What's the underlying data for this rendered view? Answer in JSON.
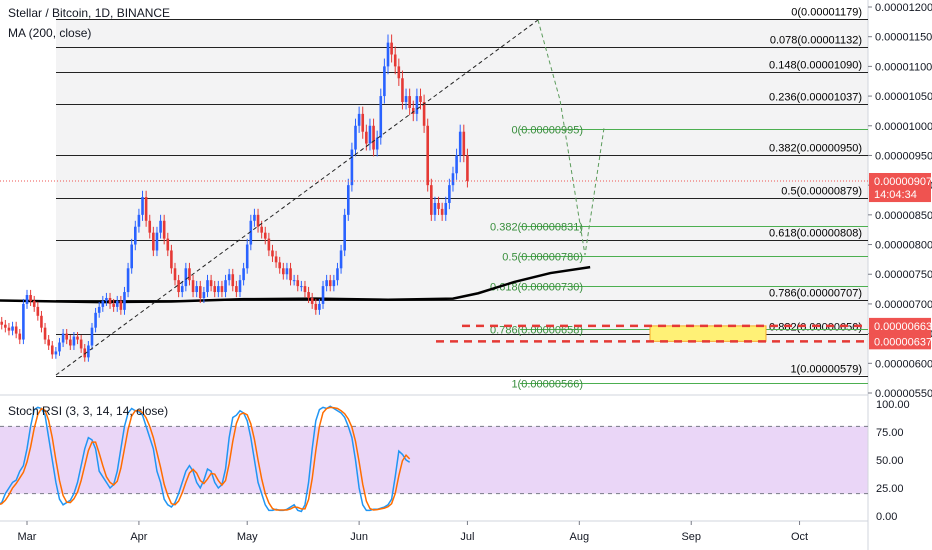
{
  "chart_data": {
    "type": "candlestick",
    "title": "Stellar / Bitcoin, 1D, BINANCE",
    "ma_label": "MA (200, close)",
    "rsi_label": "Stoch RSI (3, 3, 14, 14, close)",
    "price_axis": {
      "ticks": [
        "0.00001200",
        "0.00001150",
        "0.00001100",
        "0.00001050",
        "0.00001000",
        "0.00000950",
        "0.00000900",
        "0.00000850",
        "0.00000800",
        "0.00000750",
        "0.00000700",
        "0.00000650",
        "0.00000600",
        "0.00000550"
      ],
      "range": [
        5.5e-06,
        1.21e-05
      ]
    },
    "rsi_axis": {
      "ticks": [
        "100.00",
        "75.00",
        "50.00",
        "25.00",
        "0.00"
      ],
      "range": [
        0,
        100
      ],
      "band": [
        20,
        80
      ]
    },
    "x_ticks": [
      "Mar",
      "Apr",
      "May",
      "Jun",
      "Jul",
      "Aug",
      "Sep",
      "Oct"
    ],
    "x_tick_days": [
      0,
      31,
      61,
      92,
      122,
      153,
      184,
      214
    ],
    "price_labels": [
      {
        "text": "0.00000907",
        "value": 9.07e-06,
        "color": "#ef5350"
      },
      {
        "text": "14:04:34",
        "value": 8.85e-06,
        "color": "#ef5350"
      },
      {
        "text": "0.00000663",
        "value": 6.63e-06,
        "color": "#ef5350"
      },
      {
        "text": "0.00000637",
        "value": 6.37e-06,
        "color": "#ef5350"
      }
    ],
    "fib_main": [
      {
        "label": "0(0.00001179)",
        "value": 1.179e-05
      },
      {
        "label": "0.078(0.00001132)",
        "value": 1.132e-05
      },
      {
        "label": "0.148(0.00001090)",
        "value": 1.09e-05
      },
      {
        "label": "0.236(0.00001037)",
        "value": 1.037e-05
      },
      {
        "label": "0.382(0.00000950)",
        "value": 9.5e-06
      },
      {
        "label": "0.5(0.00000879)",
        "value": 8.79e-06
      },
      {
        "label": "0.618(0.00000808)",
        "value": 8.08e-06
      },
      {
        "label": "0.786(0.00000707)",
        "value": 7.07e-06
      },
      {
        "label": "0.882(0.00000650)",
        "value": 6.5e-06
      },
      {
        "label": "1(0.00000579)",
        "value": 5.79e-06
      }
    ],
    "fib_retrace": [
      {
        "label": "0(0.00000995)",
        "value": 9.95e-06
      },
      {
        "label": "0.382(0.00000831)",
        "value": 8.31e-06
      },
      {
        "label": "0.5(0.00000780)",
        "value": 7.8e-06
      },
      {
        "label": "0.618(0.00000730)",
        "value": 7.3e-06
      },
      {
        "label": "0.786(0.00000658)",
        "value": 6.58e-06
      },
      {
        "label": "1(0.00000566)",
        "value": 5.66e-06
      }
    ],
    "support_zone": {
      "top": 6.63e-06,
      "bottom": 6.37e-06
    },
    "ma_points": [
      [
        -10,
        7.06e-06
      ],
      [
        20,
        7.03e-06
      ],
      [
        40,
        7.04e-06
      ],
      [
        60,
        7.08e-06
      ],
      [
        80,
        7.09e-06
      ],
      [
        100,
        7.07e-06
      ],
      [
        118,
        7.09e-06
      ],
      [
        125,
        7.18e-06
      ],
      [
        135,
        7.37e-06
      ],
      [
        145,
        7.52e-06
      ],
      [
        156,
        7.62e-06
      ]
    ],
    "closes": [
      6.7e-06,
      6.65e-06,
      6.6e-06,
      6.55e-06,
      6.62e-06,
      6.5e-06,
      6.4e-06,
      7e-06,
      7.15e-06,
      7.05e-06,
      6.95e-06,
      6.8e-06,
      6.6e-06,
      6.4e-06,
      6.3e-06,
      6.15e-06,
      6.2e-06,
      6.35e-06,
      6.5e-06,
      6.4e-06,
      6.3e-06,
      6.45e-06,
      6.4e-06,
      6.25e-06,
      6.1e-06,
      6.3e-06,
      6.6e-06,
      6.85e-06,
      6.95e-06,
      7.05e-06,
      7.1e-06,
      7e-06,
      6.95e-06,
      7.05e-06,
      6.9e-06,
      7.2e-06,
      7.6e-06,
      8e-06,
      8.3e-06,
      8.5e-06,
      8.8e-06,
      8.4e-06,
      8.2e-06,
      7.9e-06,
      8.2e-06,
      8.4e-06,
      8.1e-06,
      7.9e-06,
      7.6e-06,
      7.4e-06,
      7.2e-06,
      7.3e-06,
      7.6e-06,
      7.4e-06,
      7.2e-06,
      7.3e-06,
      7.1e-06,
      7.2e-06,
      7.4e-06,
      7.3e-06,
      7.2e-06,
      7.3e-06,
      7.2e-06,
      7.4e-06,
      7.5e-06,
      7.3e-06,
      7.2e-06,
      7.4e-06,
      7.6e-06,
      8e-06,
      8.4e-06,
      8.5e-06,
      8.3e-06,
      8.2e-06,
      8.1e-06,
      7.9e-06,
      7.8e-06,
      7.7e-06,
      7.6e-06,
      7.5e-06,
      7.6e-06,
      7.4e-06,
      7.4e-06,
      7.3e-06,
      7.3e-06,
      7.2e-06,
      7.1e-06,
      7e-06,
      6.9e-06,
      7e-06,
      7.3e-06,
      7.4e-06,
      7.3e-06,
      7.4e-06,
      7.6e-06,
      7.9e-06,
      8.5e-06,
      9e-06,
      9.6e-06,
      1e-05,
      1.02e-05,
      9.9e-06,
      9.7e-06,
      1e-05,
      9.6e-06,
      9.8e-06,
      1.05e-05,
      1.1e-05,
      1.14e-05,
      1.12e-05,
      1.1e-05,
      1.08e-05,
      1.04e-05,
      1.05e-05,
      1.03e-05,
      1.02e-05,
      1.05e-05,
      1.04e-05,
      1e-05,
      9e-06,
      8.5e-06,
      8.7e-06,
      8.6e-06,
      8.5e-06,
      8.7e-06,
      9e-06,
      9.2e-06,
      9.5e-06,
      9.9e-06,
      9.5e-06,
      9.07e-06
    ],
    "stoch_k": [
      10,
      12,
      20,
      25,
      30,
      32,
      40,
      45,
      60,
      80,
      95,
      97,
      96,
      90,
      70,
      50,
      30,
      15,
      10,
      12,
      14,
      20,
      30,
      45,
      60,
      70,
      68,
      60,
      40,
      35,
      30,
      25,
      28,
      40,
      60,
      80,
      92,
      96,
      94,
      93,
      90,
      80,
      70,
      60,
      40,
      30,
      15,
      10,
      8,
      12,
      20,
      30,
      40,
      45,
      40,
      30,
      25,
      32,
      42,
      40,
      30,
      25,
      28,
      42,
      70,
      88,
      90,
      94,
      92,
      85,
      70,
      50,
      30,
      20,
      10,
      5,
      5,
      6,
      5,
      5,
      6,
      8,
      10,
      5,
      4,
      10,
      30,
      60,
      85,
      95,
      97,
      96,
      98,
      96,
      94,
      92,
      88,
      80,
      70,
      50,
      25,
      10,
      5,
      5,
      6,
      6,
      7,
      8,
      10,
      15,
      35,
      58,
      55,
      50,
      48
    ]
  }
}
